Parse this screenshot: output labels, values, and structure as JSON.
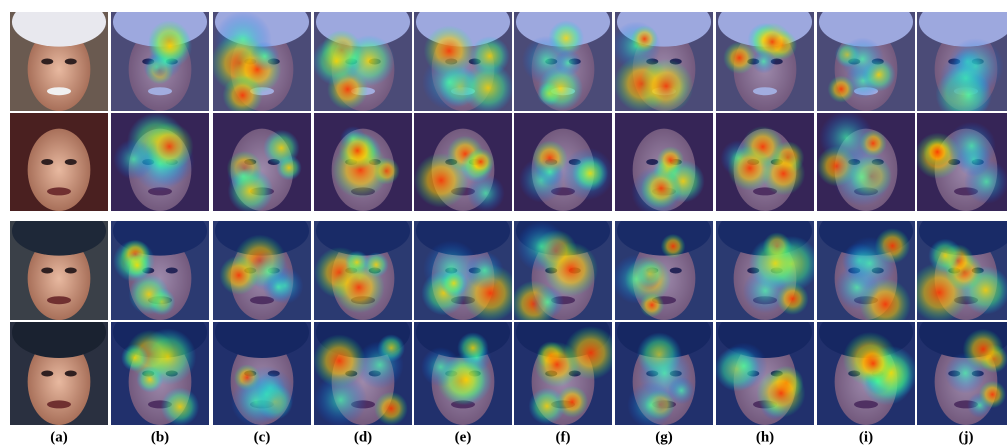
{
  "figure": {
    "labels": [
      "(a)",
      "(b)",
      "(c)",
      "(d)",
      "(e)",
      "(f)",
      "(g)",
      "(h)",
      "(i)",
      "(j)"
    ]
  }
}
